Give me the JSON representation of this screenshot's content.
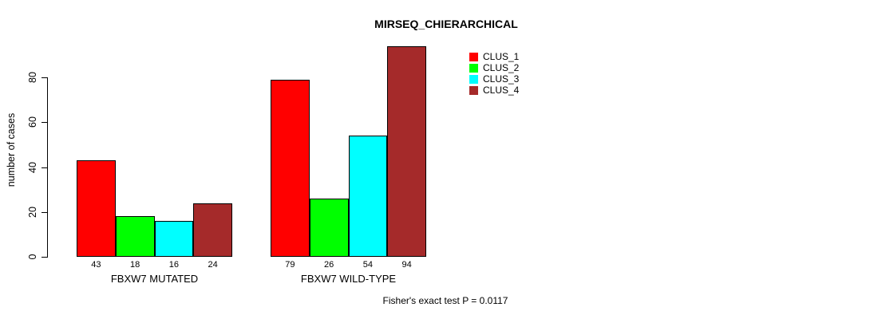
{
  "chart": {
    "title": "MIRSEQ_CHIERARCHICAL",
    "ylabel": "number of cases",
    "annotation": "Fisher's exact test P = 0.0117"
  },
  "chart_data": {
    "type": "bar",
    "title": "MIRSEQ_CHIERARCHICAL",
    "xlabel": "",
    "ylabel": "number of cases",
    "categories": [
      "FBXW7 MUTATED",
      "FBXW7 WILD-TYPE"
    ],
    "series": [
      {
        "name": "CLUS_1",
        "color": "#FF0000",
        "values": [
          43,
          79
        ]
      },
      {
        "name": "CLUS_2",
        "color": "#00FF00",
        "values": [
          18,
          26
        ]
      },
      {
        "name": "CLUS_3",
        "color": "#00FFFF",
        "values": [
          16,
          54
        ]
      },
      {
        "name": "CLUS_4",
        "color": "#A52A2A",
        "values": [
          24,
          94
        ]
      }
    ],
    "bar_labels": [
      [
        43,
        18,
        16,
        24
      ],
      [
        79,
        26,
        54,
        94
      ]
    ],
    "yticks": [
      0,
      20,
      40,
      60,
      80
    ],
    "ylim": [
      0,
      94
    ],
    "grid": false,
    "legend_position": "top-right",
    "annotation": "Fisher's exact test P = 0.0117"
  }
}
